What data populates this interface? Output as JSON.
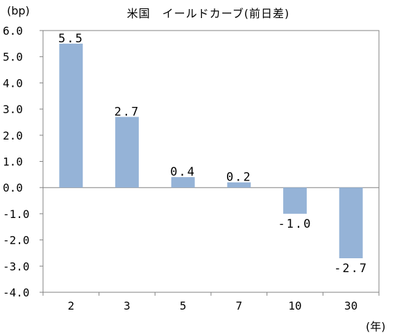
{
  "chart_data": {
    "type": "bar",
    "title": "米国　イールドカーブ(前日差)",
    "y_unit": "(bp)",
    "x_unit": "(年)",
    "categories": [
      "2",
      "3",
      "5",
      "7",
      "10",
      "30"
    ],
    "values": [
      5.5,
      2.7,
      0.4,
      0.2,
      -1.0,
      -2.7
    ],
    "value_labels": [
      "5.5",
      "2.7",
      "0.4",
      "0.2",
      "-1.0",
      "-2.7"
    ],
    "ylim": [
      -4.0,
      6.0
    ],
    "yticks": [
      "6.0",
      "5.0",
      "4.0",
      "3.0",
      "2.0",
      "1.0",
      "0.0",
      "-1.0",
      "-2.0",
      "-3.0",
      "-4.0"
    ],
    "grid": false,
    "legend": "none",
    "bar_color": "#95b3d7",
    "axis_color": "#808080"
  }
}
